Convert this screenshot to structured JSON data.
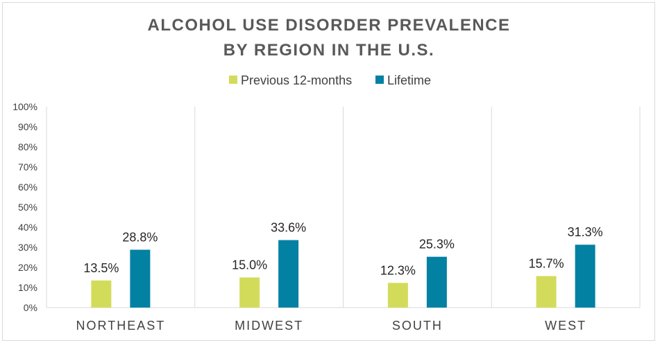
{
  "chart_data": {
    "type": "bar",
    "title_lines": [
      "ALCOHOL USE DISORDER PREVALENCE",
      "BY REGION IN THE U.S."
    ],
    "categories": [
      "NORTHEAST",
      "MIDWEST",
      "SOUTH",
      "WEST"
    ],
    "series": [
      {
        "name": "Previous 12-months",
        "color": "#d3dc5a",
        "values": [
          13.5,
          15.0,
          12.3,
          15.7
        ],
        "labels": [
          "13.5%",
          "15.0%",
          "12.3%",
          "15.7%"
        ]
      },
      {
        "name": "Lifetime",
        "color": "#0381a3",
        "values": [
          28.8,
          33.6,
          25.3,
          31.3
        ],
        "labels": [
          "28.8%",
          "33.6%",
          "25.3%",
          "31.3%"
        ]
      }
    ],
    "yticks": [
      "0%",
      "10%",
      "20%",
      "30%",
      "40%",
      "50%",
      "60%",
      "70%",
      "80%",
      "90%",
      "100%"
    ],
    "ylim": [
      0,
      100
    ],
    "legend_position": "top",
    "grid": "vertical category separators"
  }
}
